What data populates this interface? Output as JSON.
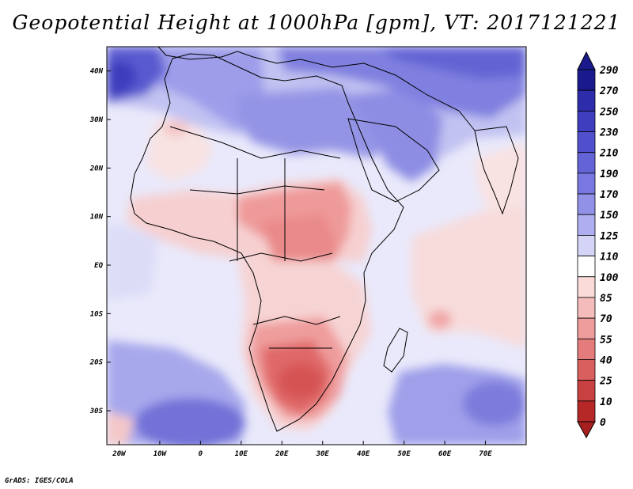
{
  "title": "Geopotential Height at 1000hPa [gpm], VT: 2017121221",
  "credit": "GrADS: IGES/COLA",
  "map": {
    "lon_range": [
      -23,
      80
    ],
    "lat_range": [
      -37,
      45
    ],
    "lon_ticks": [
      "20W",
      "10W",
      "0",
      "10E",
      "20E",
      "30E",
      "40E",
      "50E",
      "60E",
      "70E"
    ],
    "lat_ticks": [
      "40N",
      "30N",
      "20N",
      "10N",
      "EQ",
      "10S",
      "20S",
      "30S"
    ]
  },
  "colorbar": {
    "levels": [
      "290",
      "270",
      "250",
      "230",
      "210",
      "190",
      "170",
      "150",
      "125",
      "110",
      "100",
      "85",
      "70",
      "55",
      "40",
      "25",
      "10",
      "0"
    ],
    "colors": [
      "#1a1a8c",
      "#2d2dab",
      "#3e3ebf",
      "#5050cc",
      "#6464d7",
      "#7878e0",
      "#9191e8",
      "#aeaef0",
      "#d4d4f7",
      "#ffffff",
      "#fbdada",
      "#f5bcbc",
      "#ee9c9c",
      "#e47c7c",
      "#d95e5e",
      "#c94040",
      "#b62828"
    ]
  }
}
